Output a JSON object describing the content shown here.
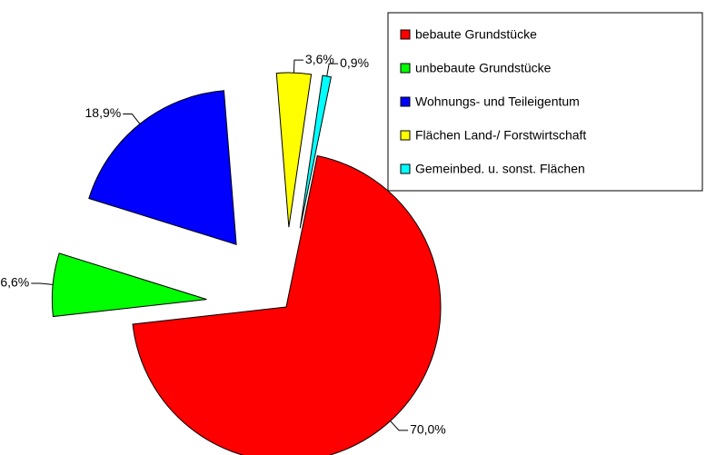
{
  "chart_data": {
    "type": "pie",
    "categories": [
      "bebaute Grundstücke",
      "unbebaute Grundstücke",
      "Wohnungs- und Teileigentum",
      "Flächen Land-/ Forstwirtschaft",
      "Gemeinbed. u. sonst. Flächen"
    ],
    "values": [
      70.0,
      6.6,
      18.9,
      3.6,
      0.9
    ],
    "value_labels": [
      "70,0%",
      "6,6%",
      "18,9%",
      "3,6%",
      "0,9%"
    ],
    "colors": [
      "#ff0000",
      "#00ff00",
      "#0000ff",
      "#ffff00",
      "#00ffff"
    ],
    "legend": "top-right"
  }
}
